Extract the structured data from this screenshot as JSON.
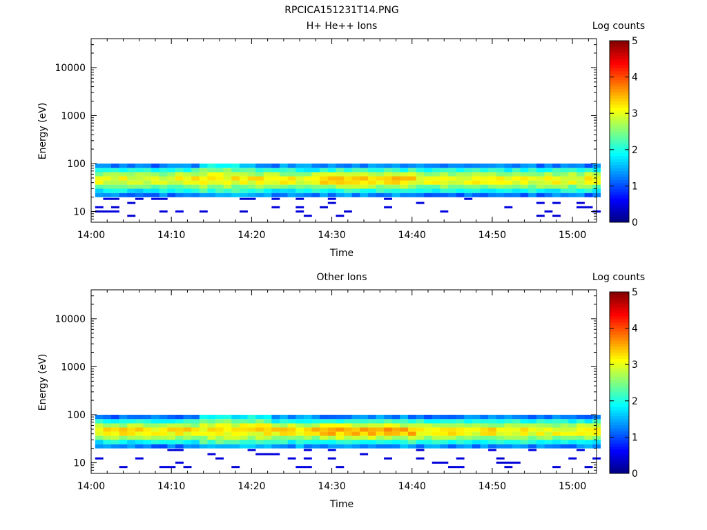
{
  "figure_title": "RPCICA151231T14.PNG",
  "colors": {
    "colormap": [
      "#00007f",
      "#0000ff",
      "#007fff",
      "#00ffff",
      "#7fff7f",
      "#ffff00",
      "#ff7f00",
      "#ff0000",
      "#7f0000"
    ]
  },
  "chart_data": [
    {
      "type": "heatmap",
      "title": "H+ He++ Ions",
      "xlabel": "Time",
      "ylabel": "Energy (eV)",
      "x_ticks": [
        "14:00",
        "14:10",
        "14:20",
        "14:30",
        "14:40",
        "14:50",
        "15:00"
      ],
      "y_ticks": [
        "10",
        "100",
        "1000",
        "10000"
      ],
      "y_scale": "log",
      "ylim": [
        6,
        40000
      ],
      "xlim": [
        "14:00",
        "15:03"
      ],
      "colorbar": {
        "label": "Log counts",
        "ticks": [
          "0",
          "1",
          "2",
          "3",
          "4",
          "5"
        ],
        "range": [
          0,
          5
        ]
      },
      "energy_bins_eV": [
        6.5,
        8,
        10,
        12,
        15,
        18,
        22,
        27,
        33,
        40,
        49,
        60,
        73,
        90
      ],
      "core_band_log_counts_by_time": [
        {
          "time": "14:00",
          "profile": [
            1.2,
            1.8,
            2.4,
            2.9,
            3.0,
            2.6,
            2.0,
            1.2
          ]
        },
        {
          "time": "14:10",
          "profile": [
            1.4,
            2.0,
            2.5,
            3.0,
            3.1,
            2.7,
            2.1,
            1.4
          ]
        },
        {
          "time": "14:13",
          "profile": [
            1.6,
            2.2,
            2.6,
            3.0,
            3.1,
            2.9,
            2.4,
            1.8,
            1.6,
            1.4
          ]
        },
        {
          "time": "14:20",
          "profile": [
            1.3,
            1.9,
            2.5,
            3.0,
            3.1,
            2.7,
            2.0,
            1.3
          ]
        },
        {
          "time": "14:28",
          "profile": [
            1.3,
            2.0,
            2.7,
            3.2,
            3.3,
            2.8,
            2.1,
            1.3
          ]
        },
        {
          "time": "14:40",
          "profile": [
            1.2,
            1.9,
            2.5,
            3.0,
            3.1,
            2.7,
            2.0,
            1.2
          ]
        },
        {
          "time": "14:50",
          "profile": [
            1.2,
            1.9,
            2.5,
            3.0,
            3.1,
            2.7,
            2.0,
            1.2
          ]
        },
        {
          "time": "15:02",
          "profile": [
            1.2,
            1.8,
            2.4,
            2.9,
            3.0,
            2.6,
            2.0,
            1.2
          ]
        }
      ],
      "sparse_counts_log_value": 0.4
    },
    {
      "type": "heatmap",
      "title": "Other Ions",
      "xlabel": "Time",
      "ylabel": "Energy (eV)",
      "x_ticks": [
        "14:00",
        "14:10",
        "14:20",
        "14:30",
        "14:40",
        "14:50",
        "15:00"
      ],
      "y_ticks": [
        "10",
        "100",
        "1000",
        "10000"
      ],
      "y_scale": "log",
      "ylim": [
        6,
        40000
      ],
      "xlim": [
        "14:00",
        "15:03"
      ],
      "colorbar": {
        "label": "Log counts",
        "ticks": [
          "0",
          "1",
          "2",
          "3",
          "4",
          "5"
        ],
        "range": [
          0,
          5
        ]
      },
      "energy_bins_eV": [
        6.5,
        8,
        10,
        12,
        15,
        18,
        22,
        27,
        33,
        40,
        49,
        60,
        73,
        90
      ],
      "core_band_log_counts_by_time": [
        {
          "time": "14:00",
          "profile": [
            1.2,
            1.9,
            2.6,
            3.1,
            3.2,
            2.7,
            2.0,
            1.2
          ]
        },
        {
          "time": "14:13",
          "profile": [
            1.7,
            2.3,
            2.7,
            3.1,
            3.2,
            3.0,
            2.5,
            1.9,
            1.7,
            1.5
          ]
        },
        {
          "time": "14:22",
          "profile": [
            1.4,
            2.0,
            2.6,
            3.1,
            3.3,
            2.8,
            2.0,
            1.4,
            1.2,
            1.0
          ]
        },
        {
          "time": "14:28",
          "profile": [
            1.4,
            2.1,
            2.8,
            3.4,
            3.5,
            2.9,
            2.1,
            1.3
          ]
        },
        {
          "time": "14:40",
          "profile": [
            1.3,
            2.0,
            2.6,
            3.1,
            3.2,
            2.7,
            2.0,
            1.2
          ]
        },
        {
          "time": "14:50",
          "profile": [
            1.3,
            2.0,
            2.6,
            3.0,
            3.1,
            2.7,
            2.0,
            1.2
          ]
        },
        {
          "time": "15:02",
          "profile": [
            1.2,
            1.9,
            2.5,
            3.0,
            3.1,
            2.6,
            2.0,
            1.2
          ]
        }
      ],
      "sparse_counts_log_value": 0.4
    }
  ]
}
